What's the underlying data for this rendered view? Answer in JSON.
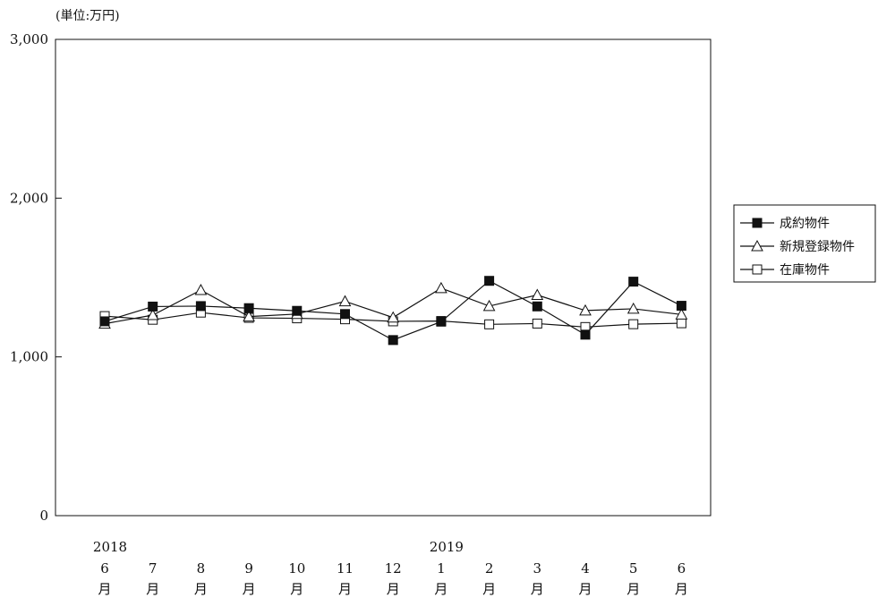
{
  "chart_data": {
    "type": "line",
    "unit_label": "(単位:万円)",
    "ylim": [
      0,
      3000
    ],
    "y_ticks": [
      "0",
      "1,000",
      "2,000",
      "3,000"
    ],
    "y_tick_values": [
      0,
      1000,
      2000,
      3000
    ],
    "categories": [
      {
        "year": "2018",
        "month": "6",
        "suffix": "月"
      },
      {
        "year": "",
        "month": "7",
        "suffix": "月"
      },
      {
        "year": "",
        "month": "8",
        "suffix": "月"
      },
      {
        "year": "",
        "month": "9",
        "suffix": "月"
      },
      {
        "year": "",
        "month": "10",
        "suffix": "月"
      },
      {
        "year": "",
        "month": "11",
        "suffix": "月"
      },
      {
        "year": "",
        "month": "12",
        "suffix": "月"
      },
      {
        "year": "2019",
        "month": "1",
        "suffix": "月"
      },
      {
        "year": "",
        "month": "2",
        "suffix": "月"
      },
      {
        "year": "",
        "month": "3",
        "suffix": "月"
      },
      {
        "year": "",
        "month": "4",
        "suffix": "月"
      },
      {
        "year": "",
        "month": "5",
        "suffix": "月"
      },
      {
        "year": "",
        "month": "6",
        "suffix": "月"
      }
    ],
    "series": [
      {
        "name": "成約物件",
        "marker": "filled-square",
        "values": [
          1224,
          1317,
          1320,
          1307,
          1290,
          1270,
          1106,
          1222,
          1479,
          1318,
          1140,
          1474,
          1322
        ]
      },
      {
        "name": "新規登録物件",
        "marker": "open-triangle",
        "values": [
          1209,
          1263,
          1421,
          1254,
          1270,
          1350,
          1248,
          1433,
          1320,
          1390,
          1292,
          1303,
          1267
        ]
      },
      {
        "name": "在庫物件",
        "marker": "open-square",
        "values": [
          1257,
          1234,
          1279,
          1246,
          1243,
          1237,
          1224,
          1226,
          1205,
          1210,
          1188,
          1206,
          1212
        ]
      }
    ],
    "grid": false,
    "legend_position": "right"
  }
}
